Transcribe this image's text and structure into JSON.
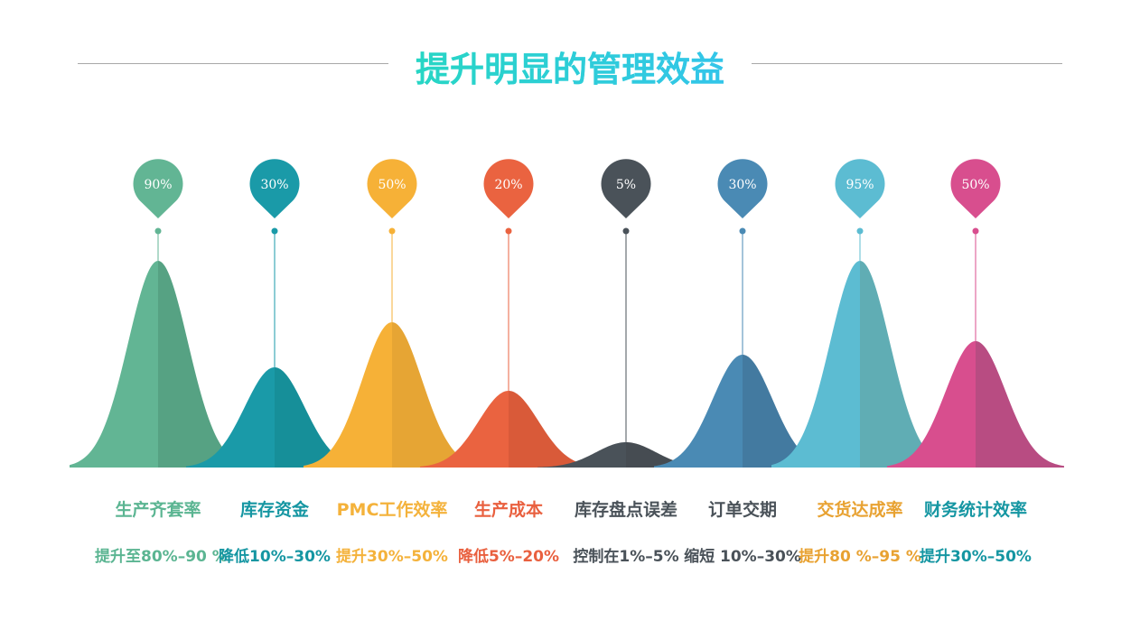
{
  "title": "提升明显的管理效益",
  "chart_data": {
    "type": "area",
    "title": "提升明显的管理效益",
    "categories": [
      "生产齐套率",
      "库存资金",
      "PMC工作效率",
      "生产成本",
      "库存盘点误差",
      "订单交期",
      "交货达成率",
      "财务统计效率"
    ],
    "values": [
      90,
      30,
      50,
      20,
      5,
      30,
      95,
      50
    ],
    "pin_labels": [
      "90%",
      "30%",
      "50%",
      "20%",
      "5%",
      "30%",
      "95%",
      "50%"
    ],
    "descriptions": [
      "提升至80%–90 %",
      "降低10%–30%",
      "提升30%–50%",
      "降低5%–20%",
      "控制在1%–5%",
      "缩短 10%–30%",
      "提升80 %–95 %",
      "提升30%–50%"
    ],
    "colors": [
      "#62b594",
      "#1a9aa8",
      "#f6b137",
      "#ea6340",
      "#4a5259",
      "#4a8ab4",
      "#5cbcd2",
      "#d84e8e"
    ],
    "shade_colors": [
      "#56a283",
      "#168f99",
      "#e6a534",
      "#d95a39",
      "#464c52",
      "#437aa0",
      "#60adb4",
      "#b84c82"
    ],
    "label_colors": [
      "#5bb592",
      "#1596a2",
      "#f4b23b",
      "#e9603f",
      "#4a5259",
      "#4a5259",
      "#e8a232",
      "#1596a2"
    ]
  }
}
